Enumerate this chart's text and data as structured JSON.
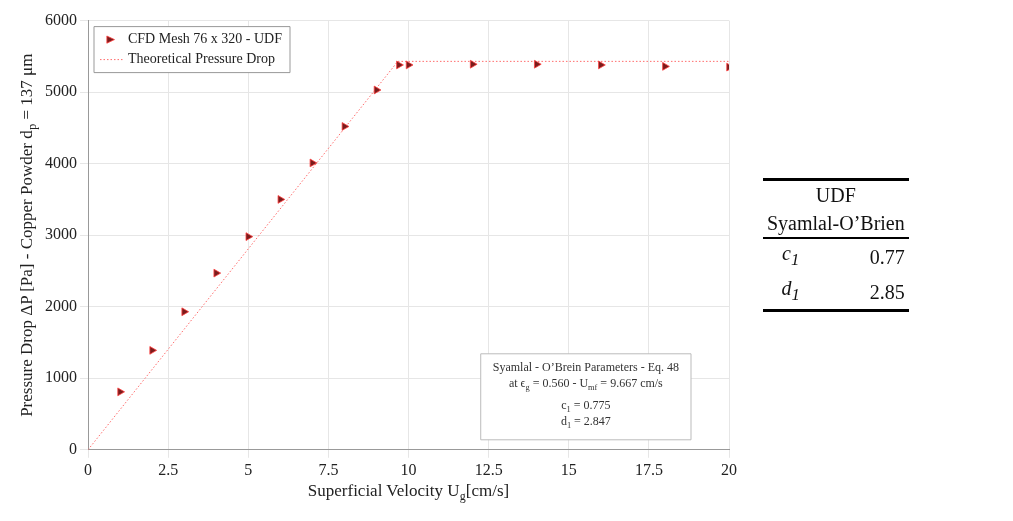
{
  "chart_data": [
    {
      "type": "scatter",
      "xlabel": "Superficial Velocity U$_{g}$[cm/s]",
      "ylabel": "Pressure Drop ΔP [Pa] - Copper Powder d$_{p}$ = 137 μm",
      "xlim": [
        0,
        20
      ],
      "xticks": [
        0,
        2.5,
        5,
        7.5,
        10,
        12.5,
        15,
        17.5,
        20
      ],
      "ylim": [
        0,
        6000
      ],
      "yticks": [
        0,
        1000,
        2000,
        3000,
        4000,
        5000,
        6000
      ],
      "grid": true,
      "legend": "top left",
      "annotations": [
        "Syamlal - O’Brein Parameters - Eq. 48",
        "at ϵ$_{g}$ = 0.560 - U$_{mf}$ = 9.667 cm/s",
        "c$_{1}$ = 0.775",
        "d$_{1}$ = 2.847"
      ],
      "series": [
        {
          "name": "CFD Mesh 76 x 320 - UDF",
          "type": "scatter",
          "marker": "triangle",
          "color": "#7b1c1c",
          "x": [
            1,
            2,
            3,
            4,
            5,
            6,
            7,
            8,
            9,
            9.7,
            10,
            12,
            14,
            16,
            18,
            20
          ],
          "values": [
            810,
            1390,
            1930,
            2470,
            2980,
            3500,
            4010,
            4520,
            5030,
            5380,
            5380,
            5390,
            5390,
            5380,
            5360,
            5350
          ]
        },
        {
          "name": "Theoretical Pressure Drop",
          "type": "line",
          "marker": "none",
          "line_style": "dotted",
          "color": "#ff6b6b",
          "x": [
            0,
            9.667,
            20
          ],
          "values": [
            0,
            5430,
            5430
          ]
        }
      ]
    },
    {
      "type": "other",
      "title": "UDF",
      "subtitle": "Syamlal-O’Brien",
      "categories": [
        "c$_{1}$",
        "d$_{1}$"
      ],
      "values": [
        0.77,
        2.85
      ],
      "data_labels": true
    }
  ]
}
